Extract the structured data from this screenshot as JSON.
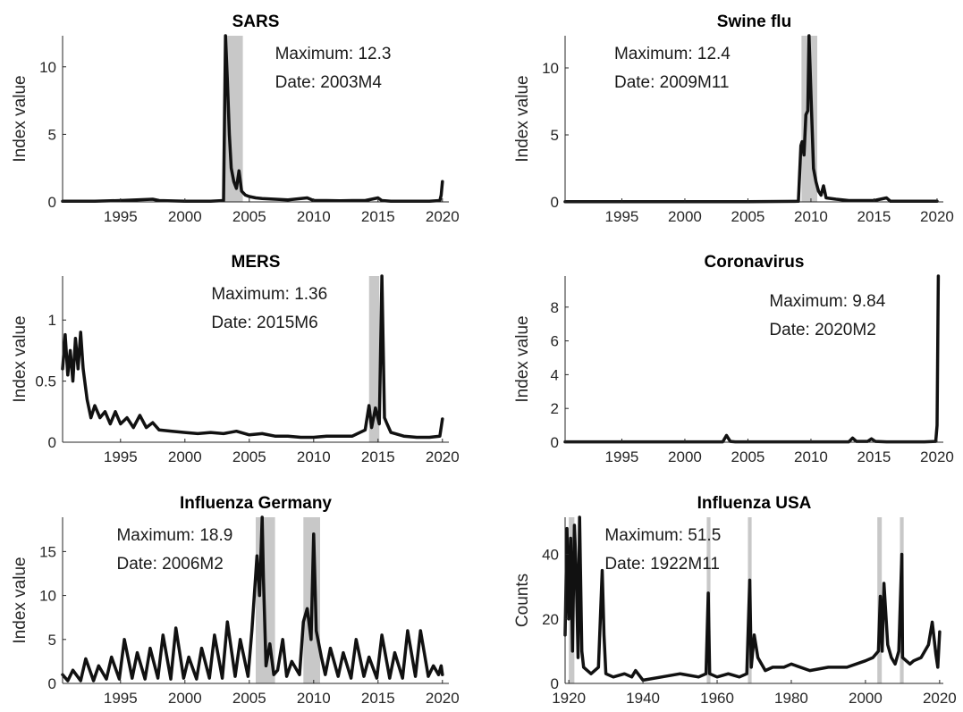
{
  "colors": {
    "series": "#111111",
    "shade": "#c8c8c8",
    "axis": "#262626"
  },
  "chart_data": [
    {
      "type": "line",
      "title": "SARS",
      "ylabel": "Index value",
      "xlim": [
        1990.5,
        2020.5
      ],
      "ylim": [
        0,
        12.3
      ],
      "xticks": [
        1995,
        2000,
        2005,
        2010,
        2015,
        2020
      ],
      "yticks": [
        0,
        5,
        10
      ],
      "annotation": {
        "maximum": "Maximum: 12.3",
        "date": "Date: 2003M4"
      },
      "annotation_position": "top-right",
      "shaded_periods": [
        [
          2003.1,
          2004.5
        ]
      ],
      "series": [
        {
          "x": [
            1990.5,
            1993,
            1995,
            1997.5,
            1998,
            2000,
            2002,
            2003.0,
            2003.15,
            2003.3,
            2003.45,
            2003.6,
            2003.8,
            2004.0,
            2004.2,
            2004.4,
            2004.7,
            2005.0,
            2005.5,
            2006,
            2007,
            2008,
            2009.5,
            2010,
            2011,
            2012,
            2013,
            2014,
            2015,
            2015.3,
            2016,
            2017,
            2018,
            2019,
            2019.8,
            2019.9,
            2020.0
          ],
          "y": [
            0.05,
            0.05,
            0.1,
            0.2,
            0.1,
            0.05,
            0.05,
            0.1,
            12.3,
            9.0,
            5.0,
            2.5,
            1.5,
            1.0,
            2.3,
            0.8,
            0.5,
            0.4,
            0.3,
            0.25,
            0.2,
            0.15,
            0.3,
            0.1,
            0.1,
            0.08,
            0.1,
            0.1,
            0.3,
            0.1,
            0.05,
            0.05,
            0.05,
            0.05,
            0.1,
            0.5,
            1.5
          ]
        }
      ]
    },
    {
      "type": "line",
      "title": "Swine flu",
      "ylabel": "Index value",
      "xlim": [
        1990.5,
        2020.5
      ],
      "ylim": [
        0,
        12.4
      ],
      "xticks": [
        1995,
        2000,
        2005,
        2010,
        2015,
        2020
      ],
      "yticks": [
        0,
        5,
        10
      ],
      "annotation": {
        "maximum": "Maximum: 12.4",
        "date": "Date: 2009M11"
      },
      "annotation_position": "top-left",
      "shaded_periods": [
        [
          2009.25,
          2010.5
        ]
      ],
      "series": [
        {
          "x": [
            1990.5,
            1995,
            2000,
            2005,
            2009.0,
            2009.2,
            2009.3,
            2009.45,
            2009.6,
            2009.75,
            2009.85,
            2010.0,
            2010.2,
            2010.4,
            2010.6,
            2010.8,
            2011.0,
            2011.2,
            2012,
            2013,
            2014,
            2015,
            2016,
            2016.3,
            2017,
            2018,
            2019,
            2020
          ],
          "y": [
            0.02,
            0.02,
            0.02,
            0.02,
            0.05,
            4.2,
            4.5,
            3.5,
            6.5,
            6.8,
            12.4,
            8.0,
            2.5,
            1.5,
            0.8,
            0.5,
            1.2,
            0.3,
            0.2,
            0.1,
            0.1,
            0.1,
            0.3,
            0.05,
            0.05,
            0.05,
            0.05,
            0.05
          ]
        }
      ]
    },
    {
      "type": "line",
      "title": "MERS",
      "ylabel": "Index value",
      "xlim": [
        1990.5,
        2020.5
      ],
      "ylim": [
        0,
        1.36
      ],
      "xticks": [
        1995,
        2000,
        2005,
        2010,
        2015,
        2020
      ],
      "yticks": [
        0,
        0.5,
        1
      ],
      "annotation": {
        "maximum": "Maximum: 1.36",
        "date": "Date: 2015M6"
      },
      "annotation_position": "top-center",
      "shaded_periods": [
        [
          2014.3,
          2015.1
        ]
      ],
      "series": [
        {
          "x": [
            1990.5,
            1990.7,
            1990.9,
            1991.1,
            1991.3,
            1991.5,
            1991.7,
            1991.9,
            1992.1,
            1992.4,
            1992.7,
            1993,
            1993.4,
            1993.8,
            1994.2,
            1994.6,
            1995,
            1995.5,
            1996,
            1996.5,
            1997,
            1997.5,
            1998,
            1999,
            2000,
            2001,
            2002,
            2003,
            2004,
            2005,
            2006,
            2007,
            2008,
            2009,
            2010,
            2011,
            2012,
            2013,
            2014,
            2014.3,
            2014.5,
            2014.8,
            2015.1,
            2015.3,
            2015.5,
            2015.7,
            2016,
            2017,
            2018,
            2019,
            2019.8,
            2020.0
          ],
          "y": [
            0.6,
            0.88,
            0.55,
            0.75,
            0.5,
            0.85,
            0.6,
            0.9,
            0.6,
            0.35,
            0.2,
            0.3,
            0.2,
            0.25,
            0.15,
            0.25,
            0.15,
            0.2,
            0.12,
            0.22,
            0.12,
            0.16,
            0.1,
            0.09,
            0.08,
            0.07,
            0.08,
            0.07,
            0.09,
            0.06,
            0.07,
            0.05,
            0.05,
            0.04,
            0.04,
            0.05,
            0.05,
            0.05,
            0.1,
            0.3,
            0.12,
            0.28,
            0.15,
            1.36,
            0.2,
            0.15,
            0.08,
            0.05,
            0.04,
            0.04,
            0.05,
            0.19
          ]
        }
      ]
    },
    {
      "type": "line",
      "title": "Coronavirus",
      "ylabel": "Index value",
      "xlim": [
        1990.5,
        2020.5
      ],
      "ylim": [
        0,
        9.84
      ],
      "xticks": [
        1995,
        2000,
        2005,
        2010,
        2015,
        2020
      ],
      "yticks": [
        0,
        2,
        4,
        6,
        8
      ],
      "annotation": {
        "maximum": "Maximum: 9.84",
        "date": "Date: 2020M2"
      },
      "annotation_position": "top-right",
      "shaded_periods": [],
      "series": [
        {
          "x": [
            1990.5,
            1995,
            2000,
            2003.0,
            2003.3,
            2003.6,
            2004,
            2010,
            2013.0,
            2013.3,
            2013.6,
            2014.5,
            2014.8,
            2015.1,
            2016,
            2019,
            2019.9,
            2020.0,
            2020.1
          ],
          "y": [
            0.02,
            0.02,
            0.02,
            0.02,
            0.4,
            0.05,
            0.02,
            0.02,
            0.02,
            0.25,
            0.05,
            0.05,
            0.2,
            0.05,
            0.02,
            0.02,
            0.05,
            1.0,
            9.84
          ]
        }
      ]
    },
    {
      "type": "line",
      "title": "Influenza Germany",
      "ylabel": "Index value",
      "xlim": [
        1990.5,
        2020.5
      ],
      "ylim": [
        0,
        18.9
      ],
      "xticks": [
        1995,
        2000,
        2005,
        2010,
        2015,
        2020
      ],
      "yticks": [
        0,
        5,
        10,
        15
      ],
      "annotation": {
        "maximum": "Maximum: 18.9",
        "date": "Date: 2006M2"
      },
      "annotation_position": "top-left",
      "shaded_periods": [
        [
          2005.5,
          2007.0
        ],
        [
          2009.2,
          2010.5
        ]
      ],
      "series": [
        {
          "x": [
            1990.5,
            1990.9,
            1991.3,
            1991.9,
            1992.3,
            1992.9,
            1993.3,
            1993.9,
            1994.3,
            1994.9,
            1995.3,
            1995.9,
            1996.3,
            1996.9,
            1997.3,
            1997.9,
            1998.3,
            1998.9,
            1999.3,
            1999.9,
            2000.3,
            2000.9,
            2001.3,
            2001.9,
            2002.3,
            2002.9,
            2003.3,
            2003.9,
            2004.3,
            2004.9,
            2005.2,
            2005.6,
            2005.8,
            2006.0,
            2006.1,
            2006.3,
            2006.6,
            2006.9,
            2007.2,
            2007.6,
            2007.9,
            2008.3,
            2008.9,
            2009.2,
            2009.5,
            2009.8,
            2010.0,
            2010.2,
            2010.6,
            2010.9,
            2011.3,
            2011.9,
            2012.3,
            2012.9,
            2013.3,
            2013.9,
            2014.3,
            2014.9,
            2015.3,
            2015.9,
            2016.3,
            2016.9,
            2017.3,
            2017.9,
            2018.3,
            2018.9,
            2019.3,
            2019.7,
            2019.9,
            2020.0
          ],
          "y": [
            1.0,
            0.3,
            1.5,
            0.3,
            2.8,
            0.3,
            2.0,
            0.5,
            3.0,
            0.5,
            5.0,
            0.6,
            3.5,
            0.5,
            4.0,
            0.6,
            5.5,
            0.5,
            6.3,
            0.6,
            3.0,
            0.5,
            4.0,
            0.6,
            5.5,
            0.6,
            7.0,
            0.8,
            5.0,
            0.8,
            6.0,
            14.5,
            10.0,
            18.9,
            12.0,
            2.0,
            4.5,
            1.0,
            1.5,
            5.0,
            0.8,
            2.5,
            1.0,
            7.0,
            8.5,
            5.0,
            17.0,
            6.0,
            3.0,
            1.0,
            4.0,
            0.8,
            3.5,
            0.6,
            5.0,
            0.8,
            3.0,
            0.6,
            5.5,
            0.6,
            3.5,
            0.6,
            6.0,
            0.8,
            6.0,
            0.8,
            2.0,
            1.0,
            2.0,
            1.0
          ]
        }
      ]
    },
    {
      "type": "line",
      "title": "Influenza USA",
      "ylabel": "Counts",
      "xlim": [
        1919,
        2021
      ],
      "ylim": [
        0,
        51.5
      ],
      "xticks": [
        1920,
        1940,
        1960,
        1980,
        2000,
        2020
      ],
      "yticks": [
        0,
        20,
        40
      ],
      "annotation": {
        "maximum": "Maximum: 51.5",
        "date": "Date: 1922M11"
      },
      "annotation_position": "top-center",
      "shaded_periods": [
        [
          1920.0,
          1921.5
        ],
        [
          1957.2,
          1958.2
        ],
        [
          1968.3,
          1969.3
        ],
        [
          2003.2,
          2004.4
        ],
        [
          2009.3,
          2010.3
        ]
      ],
      "series": [
        {
          "x": [
            1919,
            1919.5,
            1920,
            1920.5,
            1921,
            1921.5,
            1922,
            1922.5,
            1922.9,
            1923.5,
            1924,
            1926,
            1928,
            1929,
            1929.5,
            1930,
            1932,
            1935,
            1937,
            1938,
            1940,
            1945,
            1950,
            1955,
            1957,
            1957.6,
            1958,
            1960,
            1963,
            1966,
            1968,
            1968.8,
            1969.2,
            1970,
            1971,
            1973,
            1975,
            1978,
            1980,
            1985,
            1990,
            1995,
            2000,
            2002,
            2003.5,
            2004,
            2004.5,
            2005,
            2006,
            2007,
            2008,
            2009,
            2009.8,
            2010,
            2011,
            2012,
            2013,
            2015,
            2017,
            2018,
            2019,
            2019.5,
            2020
          ],
          "y": [
            15,
            48,
            20,
            45,
            10,
            49,
            35,
            8,
            51.5,
            10,
            5,
            3,
            5,
            35,
            15,
            3,
            2,
            3,
            2,
            4,
            1,
            2,
            3,
            2,
            3,
            28,
            3,
            2,
            3,
            2,
            3,
            32,
            5,
            15,
            8,
            4,
            5,
            5,
            6,
            4,
            5,
            5,
            7,
            8,
            10,
            27,
            10,
            31,
            12,
            8,
            6,
            10,
            40,
            8,
            7,
            6,
            7,
            8,
            12,
            19,
            9,
            5,
            16
          ]
        }
      ]
    }
  ]
}
